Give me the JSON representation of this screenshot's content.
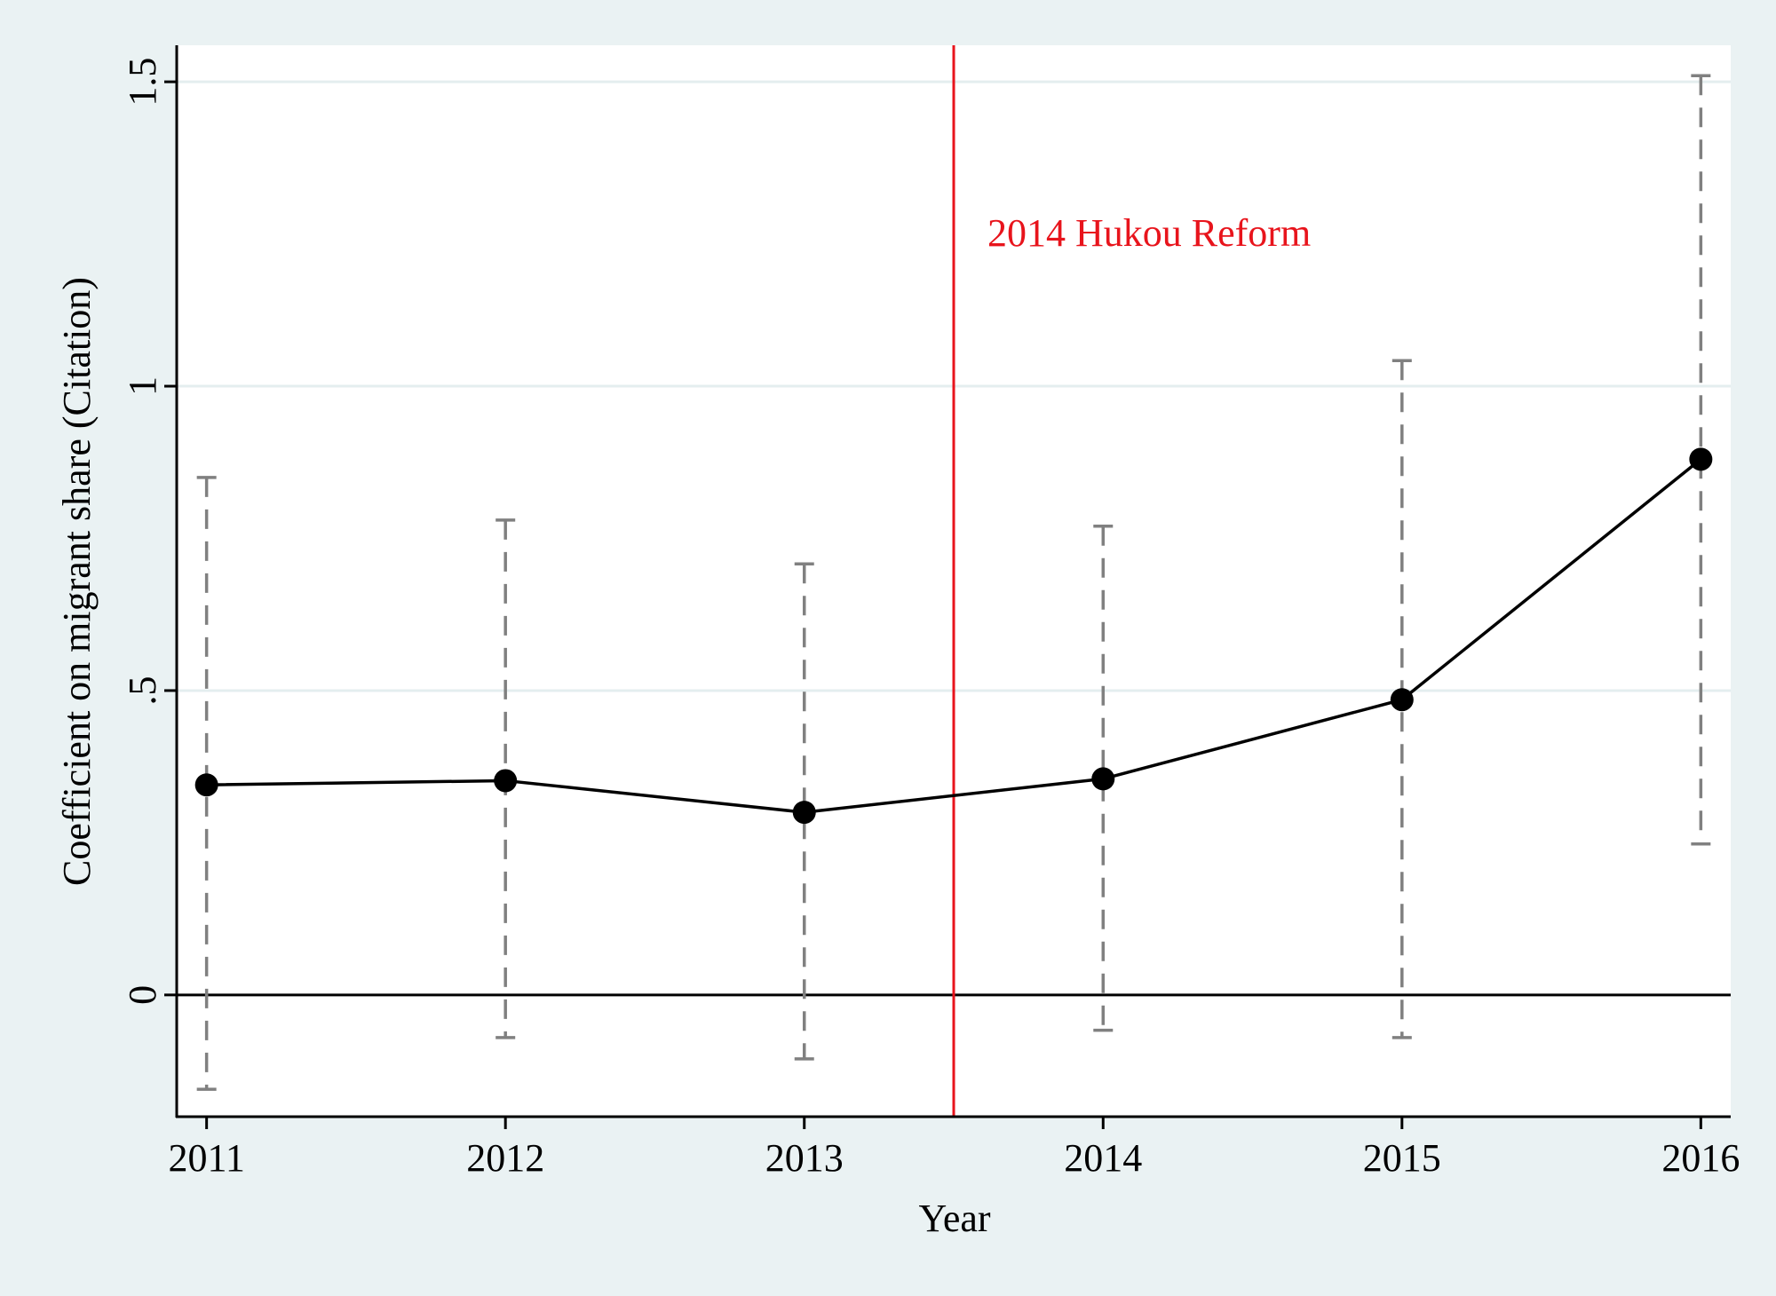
{
  "chart_data": {
    "type": "line",
    "title": "",
    "xlabel": "Year",
    "ylabel": "Coefficient on migrant share (Citation)",
    "categories": [
      "2011",
      "2012",
      "2013",
      "2014",
      "2015",
      "2016"
    ],
    "x": [
      2011,
      2012,
      2013,
      2014,
      2015,
      2016
    ],
    "series": [
      {
        "values": [
          0.345,
          0.352,
          0.3,
          0.355,
          0.485,
          0.88
        ],
        "ci_lower": [
          -0.155,
          -0.07,
          -0.105,
          -0.058,
          -0.07,
          0.248
        ],
        "ci_upper": [
          0.85,
          0.78,
          0.708,
          0.77,
          1.042,
          1.51
        ]
      }
    ],
    "ylim": [
      -0.2,
      1.56
    ],
    "xlim": [
      2010.9,
      2016.1
    ],
    "yticks": [
      0,
      0.5,
      1,
      1.5
    ],
    "ytick_labels": [
      "0",
      ".5",
      "1",
      "1.5"
    ],
    "grid": true,
    "reference_line_y": 0,
    "vertical_line": {
      "x": 2013.5,
      "label": "2014 Hukou Reform",
      "color": "#e8141c"
    },
    "colors": {
      "line": "#000000",
      "marker": "#000000",
      "ci": "#808080",
      "grid": "#e4eeef",
      "background": "#eaf2f3",
      "plot_background": "#ffffff"
    }
  }
}
